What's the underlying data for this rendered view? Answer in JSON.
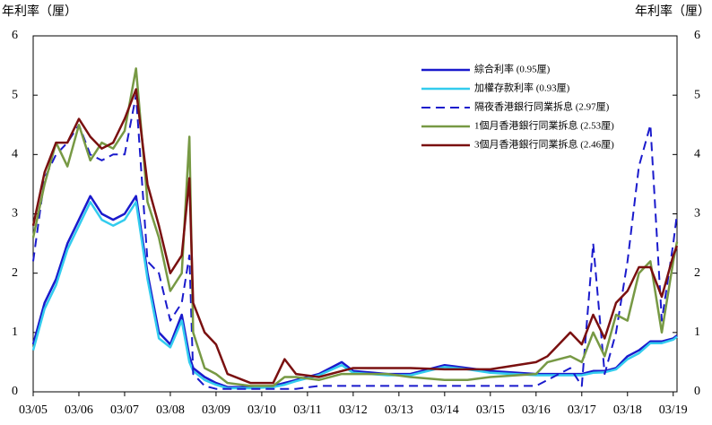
{
  "chart_data": {
    "type": "line",
    "y_label": "年利率（厘）",
    "y2_label": "年利率（厘）",
    "x": [
      "2005-03",
      "2005-06",
      "2005-09",
      "2005-12",
      "2006-03",
      "2006-06",
      "2006-09",
      "2006-12",
      "2007-03",
      "2007-06",
      "2007-09",
      "2007-12",
      "2008-03",
      "2008-06",
      "2008-08",
      "2008-09",
      "2008-12",
      "2009-03",
      "2009-06",
      "2009-12",
      "2010-06",
      "2010-09",
      "2010-12",
      "2011-06",
      "2011-12",
      "2012-03",
      "2012-12",
      "2013-06",
      "2014-03",
      "2014-09",
      "2015-03",
      "2016-03",
      "2016-06",
      "2016-12",
      "2017-03",
      "2017-06",
      "2017-09",
      "2017-12",
      "2018-03",
      "2018-06",
      "2018-09",
      "2018-12",
      "2019-03",
      "2019-04"
    ],
    "xlim": [
      "2005-03",
      "2019-04"
    ],
    "xticks": [
      {
        "value": "2005-03",
        "label": "03/05"
      },
      {
        "value": "2006-03",
        "label": "03/06"
      },
      {
        "value": "2007-03",
        "label": "03/07"
      },
      {
        "value": "2008-03",
        "label": "03/08"
      },
      {
        "value": "2009-03",
        "label": "03/09"
      },
      {
        "value": "2010-03",
        "label": "03/10"
      },
      {
        "value": "2011-03",
        "label": "03/11"
      },
      {
        "value": "2012-03",
        "label": "03/12"
      },
      {
        "value": "2013-03",
        "label": "03/13"
      },
      {
        "value": "2014-03",
        "label": "03/14"
      },
      {
        "value": "2015-03",
        "label": "03/15"
      },
      {
        "value": "2016-03",
        "label": "03/16"
      },
      {
        "value": "2017-03",
        "label": "03/17"
      },
      {
        "value": "2018-03",
        "label": "03/18"
      },
      {
        "value": "2019-03",
        "label": "03/19"
      }
    ],
    "ylim": [
      0,
      6
    ],
    "yticks": [
      0,
      1,
      2,
      3,
      4,
      5,
      6
    ],
    "y2lim": [
      0,
      6
    ],
    "y2ticks": [
      0,
      1,
      2,
      3,
      4,
      5,
      6
    ],
    "series": [
      {
        "name": "綜合利率 (0.95厘)",
        "color": "#1a1acc",
        "style": "solid",
        "values": [
          0.8,
          1.5,
          1.9,
          2.5,
          2.9,
          3.3,
          3.0,
          2.9,
          3.0,
          3.3,
          2.0,
          1.0,
          0.8,
          1.3,
          0.6,
          0.4,
          0.25,
          0.15,
          0.08,
          0.08,
          0.1,
          0.15,
          0.2,
          0.3,
          0.5,
          0.35,
          0.3,
          0.3,
          0.45,
          0.4,
          0.35,
          0.3,
          0.3,
          0.3,
          0.3,
          0.35,
          0.35,
          0.4,
          0.6,
          0.7,
          0.85,
          0.85,
          0.9,
          0.95
        ]
      },
      {
        "name": "加權存款利率 (0.93厘)",
        "color": "#33ccee",
        "style": "solid",
        "values": [
          0.7,
          1.4,
          1.8,
          2.4,
          2.8,
          3.2,
          2.9,
          2.8,
          2.9,
          3.2,
          1.9,
          0.9,
          0.75,
          1.2,
          0.5,
          0.35,
          0.2,
          0.12,
          0.06,
          0.06,
          0.08,
          0.12,
          0.18,
          0.28,
          0.45,
          0.32,
          0.28,
          0.28,
          0.42,
          0.38,
          0.32,
          0.28,
          0.28,
          0.28,
          0.28,
          0.32,
          0.33,
          0.38,
          0.55,
          0.65,
          0.82,
          0.82,
          0.88,
          0.93
        ]
      },
      {
        "name": "隔夜香港銀行同業拆息 (2.97厘)",
        "color": "#1a1acc",
        "style": "dashed",
        "values": [
          2.2,
          3.6,
          4.0,
          4.2,
          4.5,
          4.0,
          3.9,
          4.0,
          4.0,
          5.0,
          2.2,
          2.0,
          1.2,
          1.5,
          2.3,
          0.3,
          0.1,
          0.05,
          0.05,
          0.05,
          0.05,
          0.05,
          0.05,
          0.1,
          0.1,
          0.1,
          0.1,
          0.1,
          0.1,
          0.1,
          0.1,
          0.1,
          0.2,
          0.4,
          0.1,
          2.5,
          0.3,
          1.0,
          2.2,
          3.8,
          4.5,
          1.2,
          2.5,
          3.0
        ]
      },
      {
        "name": "1個月香港銀行同業拆息 (2.53厘)",
        "color": "#779944",
        "style": "solid",
        "values": [
          2.6,
          3.5,
          4.2,
          3.8,
          4.5,
          3.9,
          4.2,
          4.1,
          4.4,
          5.45,
          3.2,
          2.6,
          1.7,
          2.0,
          4.3,
          1.0,
          0.4,
          0.3,
          0.15,
          0.1,
          0.1,
          0.25,
          0.25,
          0.2,
          0.3,
          0.3,
          0.3,
          0.25,
          0.2,
          0.2,
          0.25,
          0.3,
          0.5,
          0.6,
          0.5,
          1.0,
          0.6,
          1.3,
          1.2,
          2.0,
          2.2,
          1.0,
          2.2,
          2.53
        ]
      },
      {
        "name": "3個月香港銀行同業拆息 (2.46厘)",
        "color": "#7a1010",
        "style": "solid",
        "values": [
          2.8,
          3.7,
          4.2,
          4.2,
          4.6,
          4.3,
          4.1,
          4.2,
          4.6,
          5.1,
          3.5,
          2.8,
          2.0,
          2.3,
          3.6,
          1.5,
          1.0,
          0.8,
          0.3,
          0.15,
          0.15,
          0.55,
          0.3,
          0.25,
          0.35,
          0.4,
          0.4,
          0.4,
          0.38,
          0.38,
          0.38,
          0.5,
          0.6,
          1.0,
          0.8,
          1.3,
          0.9,
          1.5,
          1.7,
          2.1,
          2.1,
          1.6,
          2.3,
          2.46
        ]
      }
    ]
  }
}
